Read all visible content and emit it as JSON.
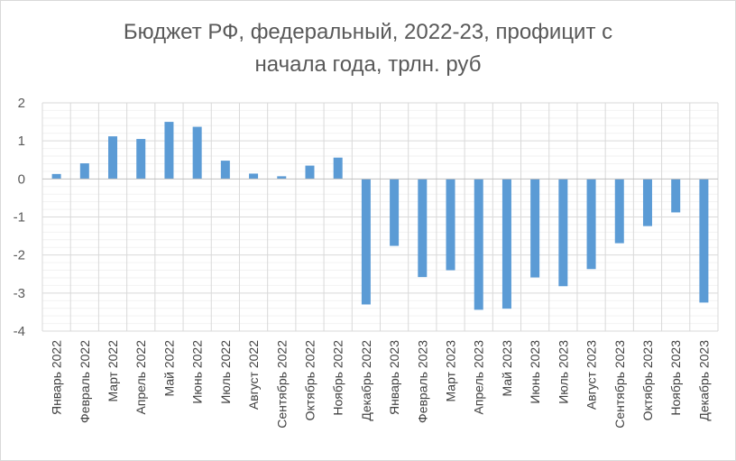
{
  "chart_data": {
    "type": "bar",
    "title": "Бюджет РФ, федеральный, 2022-23,  профицит с\nначала года, трлн. руб",
    "xlabel": "",
    "ylabel": "",
    "ylim": [
      -4,
      2
    ],
    "yticks": [
      2,
      1,
      0,
      -1,
      -2,
      -3,
      -4
    ],
    "ytick_labels": [
      "2",
      "1",
      "0",
      "-1",
      "-2",
      "-3",
      "-4"
    ],
    "grid": true,
    "bar_color": "#5b9bd5",
    "categories": [
      "Январь 2022",
      "Февраль 2022",
      "Март 2022",
      "Апрель 2022",
      "Май 2022",
      "Июнь 2022",
      "Июль 2022",
      "Август 2022",
      "Сентябрь 2022",
      "Октябрь 2022",
      "Ноябрь 2022",
      "Декабрь 2022",
      "Январь 2023",
      "Февраль 2023",
      "Март 2023",
      "Апрель 2023",
      "Май 2023",
      "Июнь 2023",
      "Июль 2023",
      "Август 2023",
      "Сентябрь 2023",
      "Октябрь 2023",
      "Ноябрь 2023",
      "Декабрь 2023"
    ],
    "values": [
      0.13,
      0.41,
      1.12,
      1.05,
      1.5,
      1.37,
      0.48,
      0.14,
      0.07,
      0.35,
      0.56,
      -3.3,
      -1.76,
      -2.58,
      -2.4,
      -3.44,
      -3.41,
      -2.59,
      -2.82,
      -2.37,
      -1.69,
      -1.24,
      -0.88,
      -3.25
    ]
  }
}
